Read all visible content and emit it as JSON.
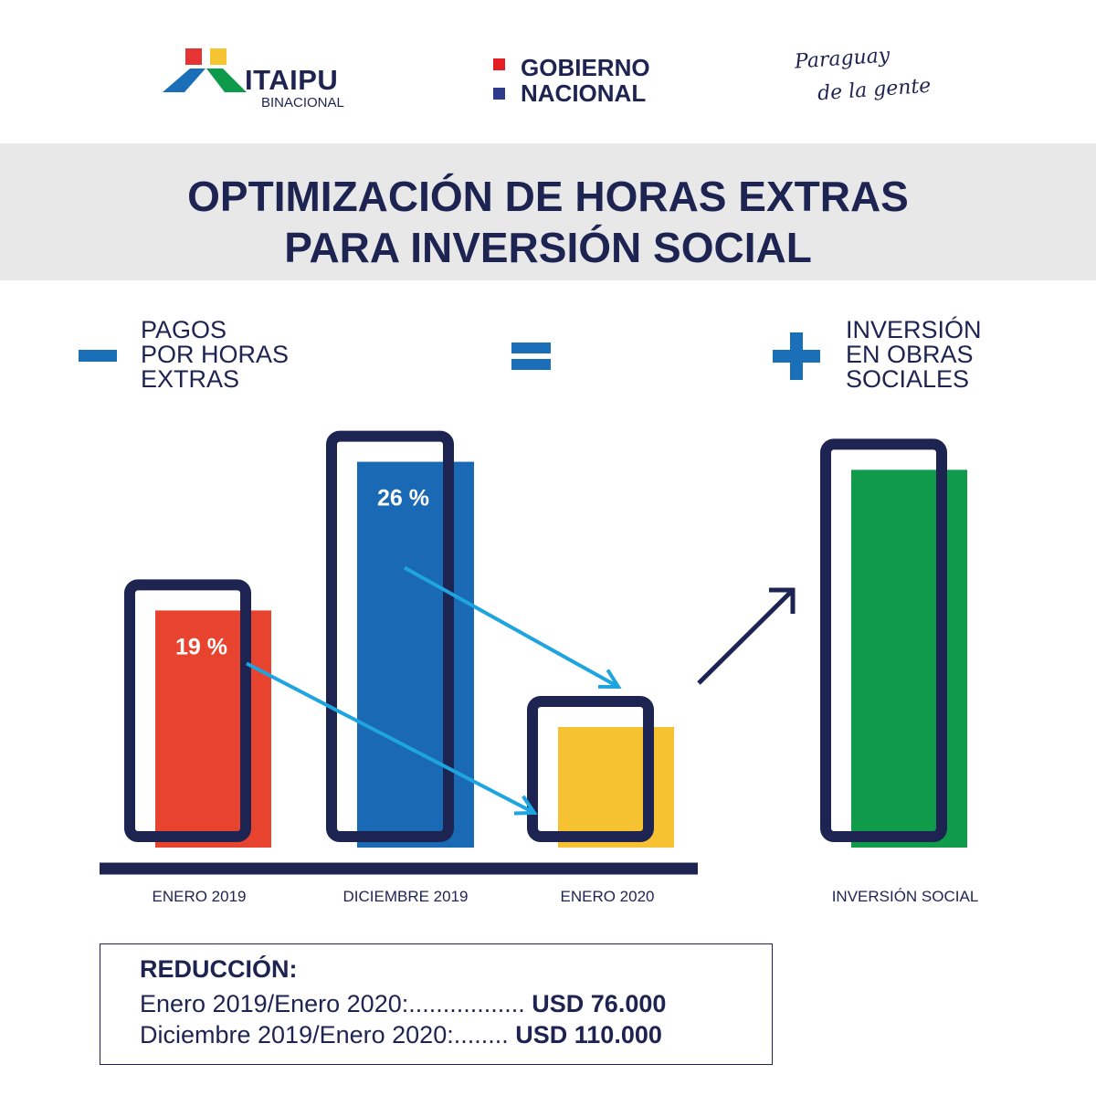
{
  "header": {
    "itaipu": {
      "name": "ITAIPU",
      "sub": "BINACIONAL",
      "colors": [
        "#e63333",
        "#f5c431",
        "#1b6fb8",
        "#0d9a4a"
      ]
    },
    "gobierno": {
      "line1": "GOBIERNO",
      "line2": "NACIONAL",
      "colors": [
        "#e31e24",
        "#2e3a8c"
      ]
    },
    "tagline": {
      "line1": "Paraguay",
      "line2": "de la gente"
    }
  },
  "title": {
    "line1": "OPTIMIZACIÓN DE HORAS EXTRAS",
    "line2": "PARA INVERSIÓN SOCIAL"
  },
  "equation": {
    "minus": {
      "line1": "PAGOS",
      "line2": "POR HORAS",
      "line3": "EXTRAS"
    },
    "plus": {
      "line1": "INVERSIÓN",
      "line2": "EN OBRAS",
      "line3": "SOCIALES"
    },
    "color": "#1b6fb8"
  },
  "chart_data": {
    "type": "bar",
    "categories": [
      "ENERO 2019",
      "DICIEMBRE 2019",
      "ENERO 2020",
      "INVERSIÓN SOCIAL"
    ],
    "values": [
      0.59,
      0.96,
      0.3,
      0.94
    ],
    "colors": [
      "#e8432e",
      "#1a69b5",
      "#f6c231",
      "#0f9b4a"
    ],
    "data_labels": [
      "19 %",
      "26 %",
      "",
      ""
    ],
    "axis_color": "#1e2452",
    "arrow_color": "#1ea5e0"
  },
  "reduction": {
    "title": "REDUCCIÓN:",
    "rows": [
      {
        "label": "Enero 2019/Enero 2020:",
        "dots": ".................",
        "value": "USD 76.000"
      },
      {
        "label": "Diciembre 2019/Enero 2020:",
        "dots": "........",
        "value": "USD 110.000"
      }
    ]
  }
}
